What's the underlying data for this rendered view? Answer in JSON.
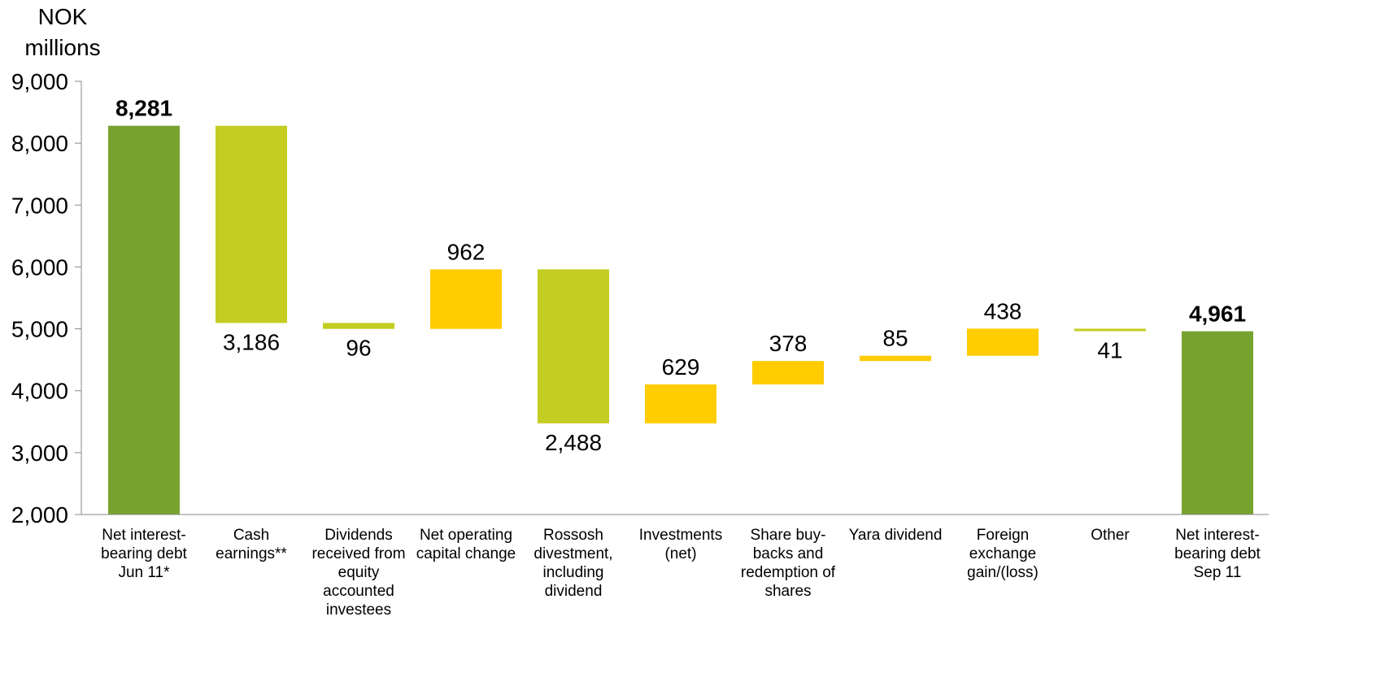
{
  "chart_data": {
    "type": "bar",
    "subtype": "waterfall",
    "unit_label": "NOK\nmillions",
    "y_ticks": [
      "9,000",
      "8,000",
      "7,000",
      "6,000",
      "5,000",
      "4,000",
      "3,000",
      "2,000"
    ],
    "ylim": [
      2000,
      9000
    ],
    "grid": false,
    "categories": [
      "Net interest-\nbearing debt\nJun 11*",
      "Cash\nearnings**",
      "Dividends\nreceived from\nequity\naccounted\ninvestees",
      "Net operating\ncapital change",
      "Rossosh\ndivestment,\nincluding\ndividend",
      "Investments\n(net)",
      "Share buy-\nbacks and\nredemption of\nshares",
      "Yara dividend",
      "Foreign\nexchange\ngain/(loss)",
      "Other",
      "Net interest-\nbearing debt\nSep 11"
    ],
    "bars": [
      {
        "start": 2000,
        "end": 8281,
        "label": "8,281",
        "kind": "total",
        "label_pos": "above",
        "bold": true
      },
      {
        "start": 8281,
        "end": 5095,
        "label": "3,186",
        "kind": "decrease",
        "label_pos": "below",
        "bold": false
      },
      {
        "start": 5095,
        "end": 4999,
        "label": "96",
        "kind": "decrease",
        "label_pos": "below",
        "bold": false
      },
      {
        "start": 4999,
        "end": 5961,
        "label": "962",
        "kind": "increase",
        "label_pos": "above",
        "bold": false
      },
      {
        "start": 5961,
        "end": 3473,
        "label": "2,488",
        "kind": "decrease",
        "label_pos": "below",
        "bold": false
      },
      {
        "start": 3473,
        "end": 4102,
        "label": "629",
        "kind": "increase",
        "label_pos": "above",
        "bold": false
      },
      {
        "start": 4102,
        "end": 4480,
        "label": "378",
        "kind": "increase",
        "label_pos": "above",
        "bold": false
      },
      {
        "start": 4480,
        "end": 4565,
        "label": "85",
        "kind": "increase",
        "label_pos": "above",
        "bold": false
      },
      {
        "start": 4565,
        "end": 5003,
        "label": "438",
        "kind": "increase",
        "label_pos": "above",
        "bold": false
      },
      {
        "start": 5003,
        "end": 4962,
        "label": "41",
        "kind": "decrease",
        "label_pos": "below",
        "bold": false
      },
      {
        "start": 2000,
        "end": 4961,
        "label": "4,961",
        "kind": "total",
        "label_pos": "above",
        "bold": true
      }
    ],
    "colors": {
      "total": "#78a22f",
      "decrease": "#c3cd22",
      "increase": "#ffcc00",
      "axis": "#888888",
      "text": "#000000"
    }
  }
}
